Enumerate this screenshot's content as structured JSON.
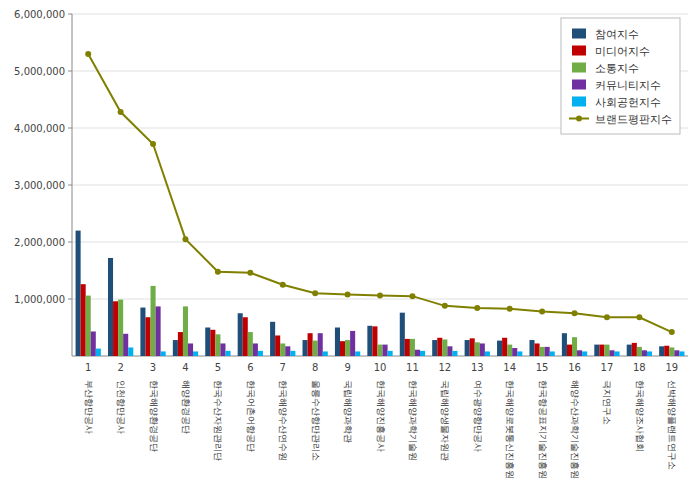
{
  "chart_data": {
    "type": "bar",
    "categories": [
      "부산항만공사",
      "인천항만공사",
      "한국해양환경공단",
      "해양환경공단",
      "한국수산자원관리단",
      "한국어촌어항공단",
      "한국해양수산연수원",
      "울릉수산항만관리소",
      "국립해양과학관",
      "한국해양진흥공사",
      "한국해양과학기술원",
      "국립해양생물자원관",
      "여수광양항만공사",
      "한국해양로봇통신진흥원",
      "한국항공표지기술진흥원",
      "해양수산과학기술진흥원",
      "극지연구소",
      "한국해양조사협회",
      "선박해양플랜트연구소"
    ],
    "xticks": [
      1,
      2,
      3,
      4,
      5,
      6,
      7,
      8,
      9,
      10,
      11,
      12,
      13,
      14,
      15,
      16,
      17,
      18,
      19
    ],
    "series": [
      {
        "name": "참여지수",
        "color": "#1f4e79",
        "values": [
          2200000,
          1720000,
          850000,
          280000,
          500000,
          750000,
          600000,
          280000,
          500000,
          530000,
          760000,
          280000,
          280000,
          270000,
          280000,
          400000,
          200000,
          200000,
          170000
        ]
      },
      {
        "name": "미디어지수",
        "color": "#c00000",
        "values": [
          1260000,
          960000,
          680000,
          420000,
          460000,
          680000,
          360000,
          400000,
          260000,
          520000,
          300000,
          320000,
          310000,
          320000,
          220000,
          200000,
          200000,
          230000,
          180000
        ]
      },
      {
        "name": "소통지수",
        "color": "#70ad47",
        "values": [
          1060000,
          990000,
          1230000,
          870000,
          380000,
          420000,
          220000,
          270000,
          280000,
          200000,
          300000,
          290000,
          240000,
          200000,
          160000,
          330000,
          200000,
          160000,
          150000
        ]
      },
      {
        "name": "커뮤니티지수",
        "color": "#7030a0",
        "values": [
          430000,
          390000,
          870000,
          220000,
          220000,
          220000,
          170000,
          400000,
          440000,
          200000,
          110000,
          170000,
          220000,
          140000,
          160000,
          100000,
          100000,
          100000,
          100000
        ]
      },
      {
        "name": "사회공헌지수",
        "color": "#00b0f0",
        "values": [
          130000,
          150000,
          80000,
          80000,
          90000,
          90000,
          90000,
          80000,
          80000,
          90000,
          90000,
          90000,
          80000,
          80000,
          80000,
          80000,
          80000,
          80000,
          80000
        ]
      },
      {
        "name": "브랜드평판지수",
        "type": "line",
        "color": "#808000",
        "marker": "circle",
        "values": [
          5300000,
          4280000,
          3720000,
          2050000,
          1480000,
          1460000,
          1250000,
          1100000,
          1080000,
          1060000,
          1050000,
          880000,
          840000,
          830000,
          780000,
          750000,
          680000,
          680000,
          420000
        ]
      }
    ],
    "ylim": [
      0,
      6000000
    ],
    "yticks": [
      {
        "value": 1000000,
        "label": "1,000,000"
      },
      {
        "value": 2000000,
        "label": "2,000,000"
      },
      {
        "value": 3000000,
        "label": "3,000,000"
      },
      {
        "value": 4000000,
        "label": "4,000,000"
      },
      {
        "value": 5000000,
        "label": "5,000,000"
      },
      {
        "value": 6000000,
        "label": "6,000,000"
      }
    ],
    "grid": true,
    "legend": "upper right"
  }
}
